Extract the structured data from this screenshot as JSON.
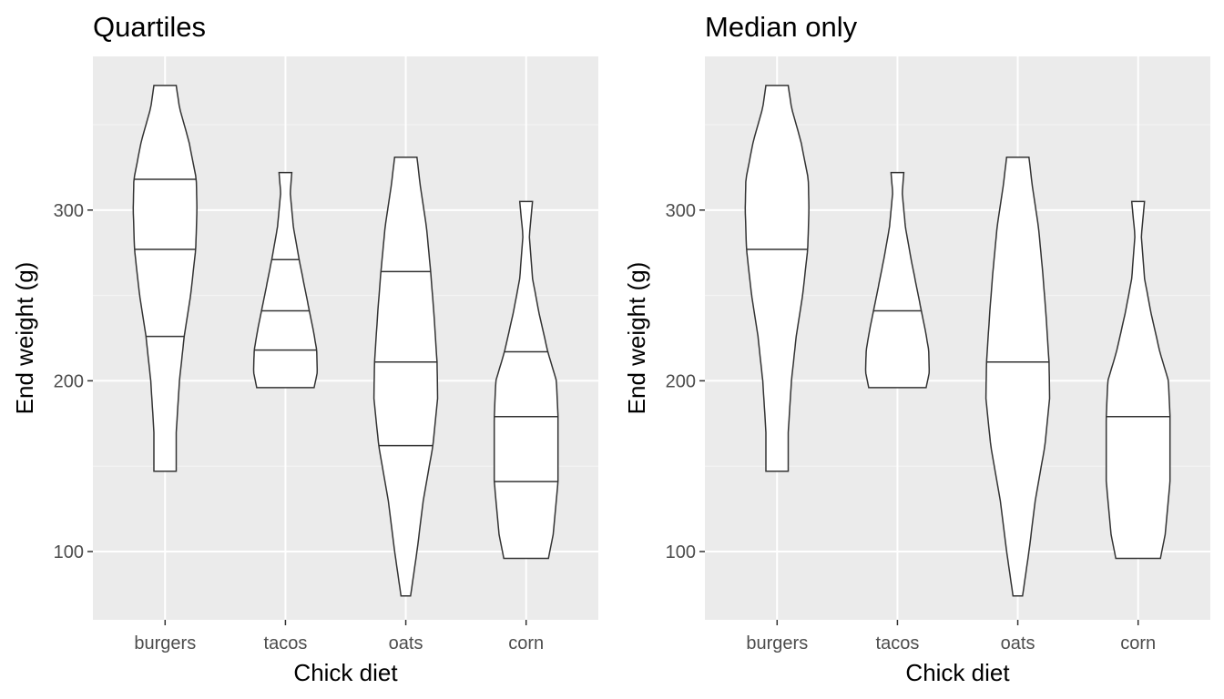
{
  "chart_data": [
    {
      "type": "violin",
      "title": "Quartiles",
      "xlabel": "Chick diet",
      "ylabel": "End weight (g)",
      "draw_quantiles": [
        0.25,
        0.5,
        0.75
      ],
      "categories": [
        "burgers",
        "tacos",
        "oats",
        "corn"
      ],
      "yticks": [
        100,
        200,
        300
      ],
      "ylim": [
        60,
        390
      ],
      "grid": true,
      "violins": [
        {
          "category": "burgers",
          "min": 147,
          "max": 373,
          "q1": 226,
          "median": 277,
          "q3": 318,
          "profile": [
            [
              147,
              0.35
            ],
            [
              170,
              0.35
            ],
            [
              200,
              0.45
            ],
            [
              226,
              0.6
            ],
            [
              250,
              0.8
            ],
            [
              277,
              0.96
            ],
            [
              300,
              1.0
            ],
            [
              318,
              0.98
            ],
            [
              340,
              0.75
            ],
            [
              360,
              0.45
            ],
            [
              373,
              0.35
            ]
          ]
        },
        {
          "category": "tacos",
          "min": 196,
          "max": 322,
          "q1": 218,
          "median": 241,
          "q3": 271,
          "profile": [
            [
              196,
              0.9
            ],
            [
              205,
              1.0
            ],
            [
              218,
              0.98
            ],
            [
              230,
              0.87
            ],
            [
              241,
              0.75
            ],
            [
              255,
              0.6
            ],
            [
              271,
              0.43
            ],
            [
              290,
              0.25
            ],
            [
              310,
              0.15
            ],
            [
              322,
              0.2
            ]
          ]
        },
        {
          "category": "oats",
          "min": 74,
          "max": 331,
          "q1": 162,
          "median": 211,
          "q3": 264,
          "profile": [
            [
              74,
              0.15
            ],
            [
              100,
              0.35
            ],
            [
              130,
              0.55
            ],
            [
              162,
              0.85
            ],
            [
              190,
              1.0
            ],
            [
              211,
              0.98
            ],
            [
              240,
              0.88
            ],
            [
              264,
              0.78
            ],
            [
              290,
              0.65
            ],
            [
              315,
              0.45
            ],
            [
              331,
              0.35
            ]
          ]
        },
        {
          "category": "corn",
          "min": 96,
          "max": 305,
          "q1": 141,
          "median": 179,
          "q3": 217,
          "profile": [
            [
              96,
              0.7
            ],
            [
              110,
              0.85
            ],
            [
              141,
              1.0
            ],
            [
              160,
              1.0
            ],
            [
              179,
              1.0
            ],
            [
              200,
              0.95
            ],
            [
              217,
              0.68
            ],
            [
              240,
              0.4
            ],
            [
              260,
              0.2
            ],
            [
              285,
              0.1
            ],
            [
              305,
              0.2
            ]
          ]
        }
      ]
    },
    {
      "type": "violin",
      "title": "Median only",
      "xlabel": "Chick diet",
      "ylabel": "End weight (g)",
      "draw_quantiles": [
        0.5
      ],
      "categories": [
        "burgers",
        "tacos",
        "oats",
        "corn"
      ],
      "yticks": [
        100,
        200,
        300
      ],
      "ylim": [
        60,
        390
      ],
      "grid": true,
      "violins": [
        {
          "category": "burgers",
          "min": 147,
          "max": 373,
          "median": 277,
          "profile": [
            [
              147,
              0.35
            ],
            [
              170,
              0.35
            ],
            [
              200,
              0.45
            ],
            [
              226,
              0.6
            ],
            [
              250,
              0.8
            ],
            [
              277,
              0.96
            ],
            [
              300,
              1.0
            ],
            [
              318,
              0.98
            ],
            [
              340,
              0.75
            ],
            [
              360,
              0.45
            ],
            [
              373,
              0.35
            ]
          ]
        },
        {
          "category": "tacos",
          "min": 196,
          "max": 322,
          "median": 241,
          "profile": [
            [
              196,
              0.9
            ],
            [
              205,
              1.0
            ],
            [
              218,
              0.98
            ],
            [
              230,
              0.87
            ],
            [
              241,
              0.75
            ],
            [
              255,
              0.6
            ],
            [
              271,
              0.43
            ],
            [
              290,
              0.25
            ],
            [
              310,
              0.15
            ],
            [
              322,
              0.2
            ]
          ]
        },
        {
          "category": "oats",
          "min": 74,
          "max": 331,
          "median": 211,
          "profile": [
            [
              74,
              0.15
            ],
            [
              100,
              0.35
            ],
            [
              130,
              0.55
            ],
            [
              162,
              0.85
            ],
            [
              190,
              1.0
            ],
            [
              211,
              0.98
            ],
            [
              240,
              0.88
            ],
            [
              264,
              0.78
            ],
            [
              290,
              0.65
            ],
            [
              315,
              0.45
            ],
            [
              331,
              0.35
            ]
          ]
        },
        {
          "category": "corn",
          "min": 96,
          "max": 305,
          "median": 179,
          "profile": [
            [
              96,
              0.7
            ],
            [
              110,
              0.85
            ],
            [
              141,
              1.0
            ],
            [
              160,
              1.0
            ],
            [
              179,
              1.0
            ],
            [
              200,
              0.95
            ],
            [
              217,
              0.68
            ],
            [
              240,
              0.4
            ],
            [
              260,
              0.2
            ],
            [
              285,
              0.1
            ],
            [
              305,
              0.2
            ]
          ]
        }
      ]
    }
  ],
  "colors": {
    "panel_background": "#ebebeb",
    "grid_major": "#ffffff",
    "grid_minor": "#f5f5f5",
    "violin_fill": "#ffffff",
    "violin_outline": "#333333",
    "tick_text": "#4d4d4d"
  }
}
